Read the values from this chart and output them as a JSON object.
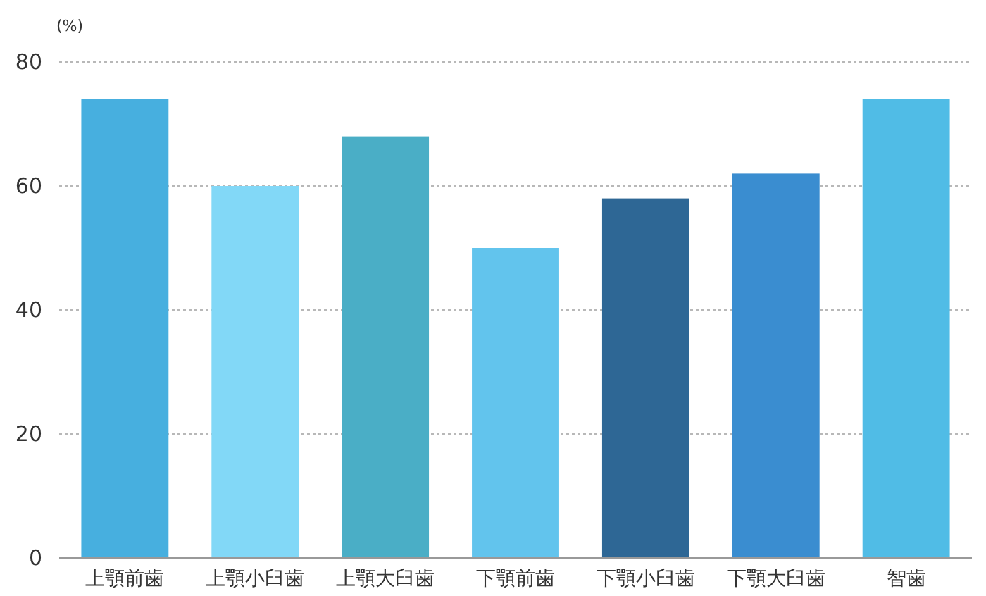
{
  "chart_data": {
    "type": "bar",
    "ylabel": "(%)",
    "categories": [
      "上顎前歯",
      "上顎小臼歯",
      "上顎大臼歯",
      "下顎前歯",
      "下顎小臼歯",
      "下顎大臼歯",
      "智歯"
    ],
    "values": [
      74,
      60,
      68,
      50,
      58,
      62,
      74
    ],
    "colors": [
      "#47afdf",
      "#82d8f7",
      "#4aaec6",
      "#62c4ed",
      "#2e6795",
      "#3a8dd0",
      "#50bce6"
    ],
    "ylim": [
      0,
      80
    ],
    "yticks": [
      0,
      20,
      40,
      60,
      80
    ],
    "grid": "y"
  }
}
